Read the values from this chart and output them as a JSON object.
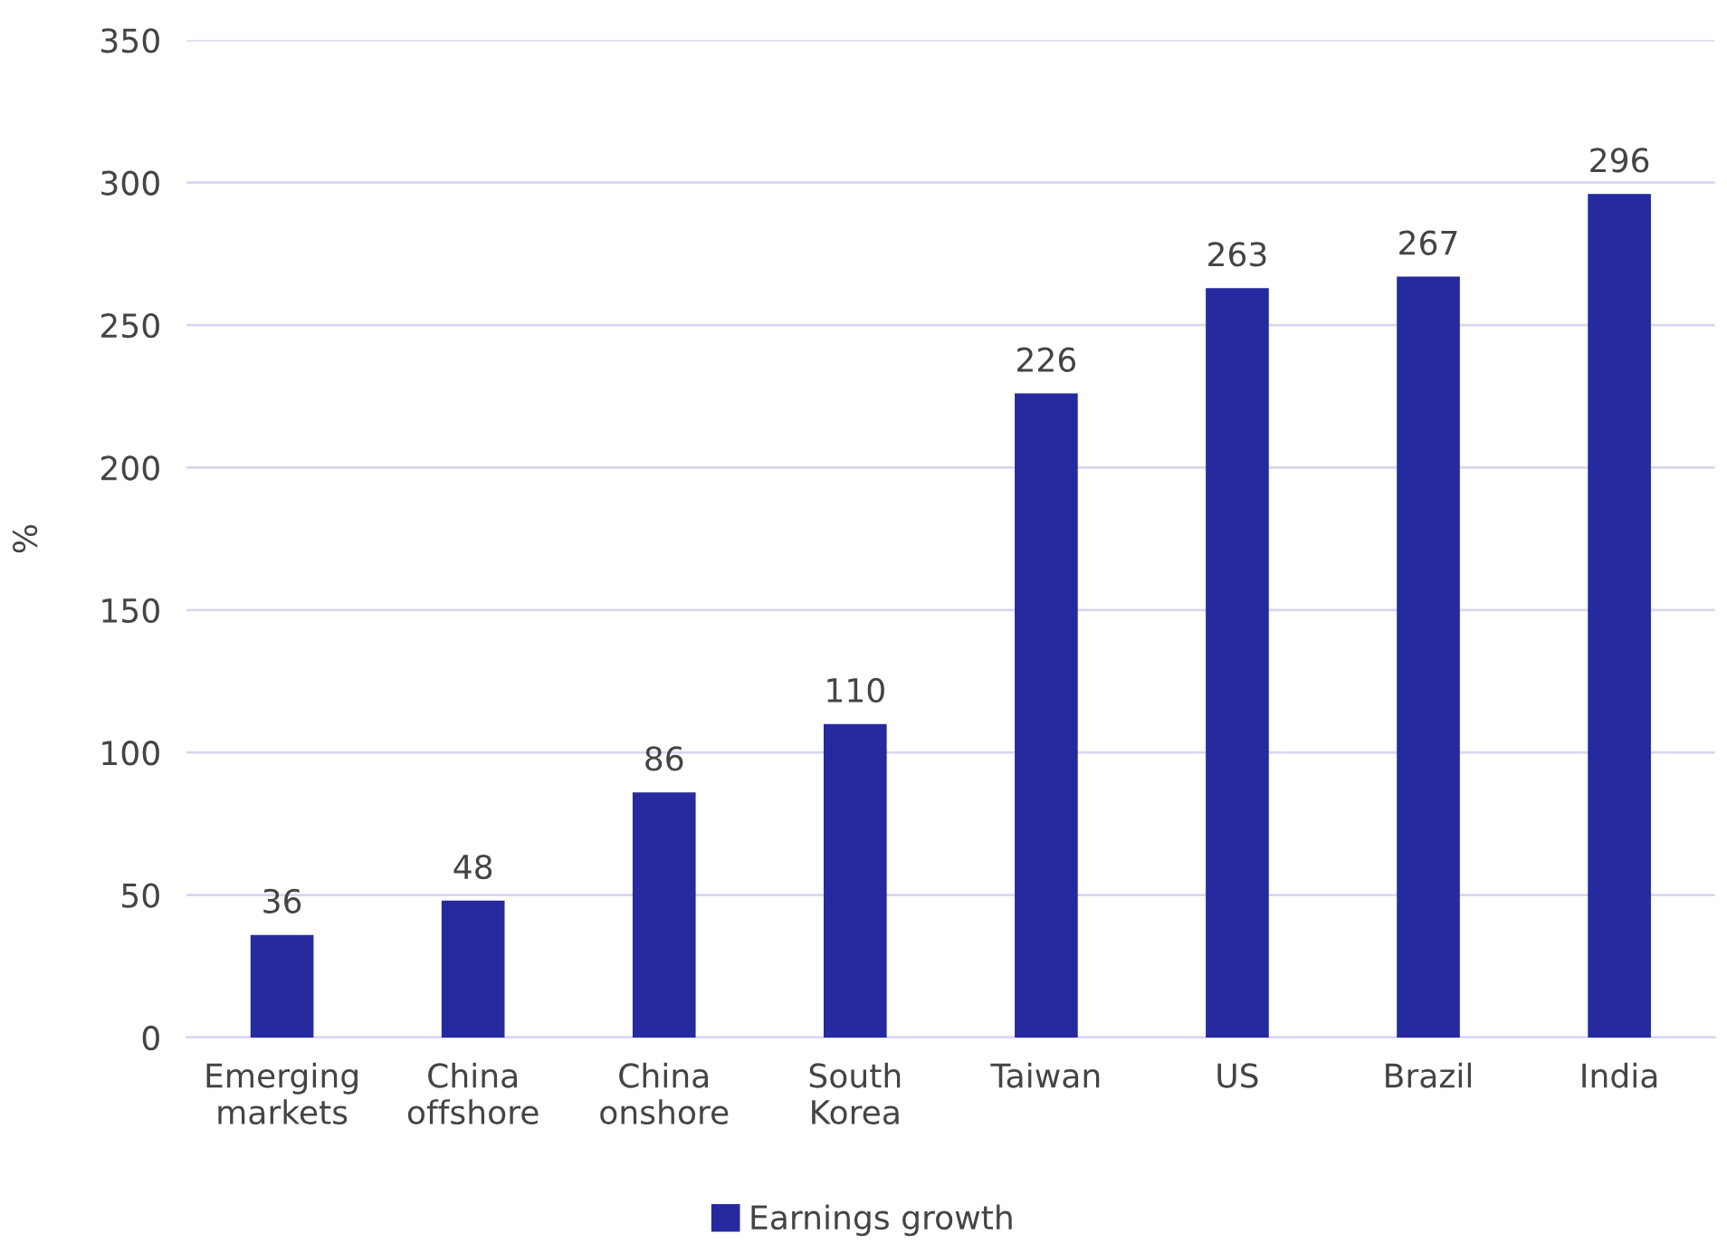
{
  "chart_data": {
    "type": "bar",
    "ylabel": "%",
    "categories": [
      "Emerging\nmarkets",
      "China\noffshore",
      "China\nonshore",
      "South\nKorea",
      "Taiwan",
      "US",
      "Brazil",
      "India"
    ],
    "series": [
      {
        "name": "Earnings growth",
        "color": "#252a9e",
        "values": [
          36,
          48,
          86,
          110,
          226,
          263,
          267,
          296
        ]
      }
    ],
    "ylim": [
      0,
      350
    ],
    "yticks": [
      0,
      50,
      100,
      150,
      200,
      250,
      300,
      350
    ],
    "grid": "y",
    "legend": "bottom",
    "data_labels": true
  }
}
